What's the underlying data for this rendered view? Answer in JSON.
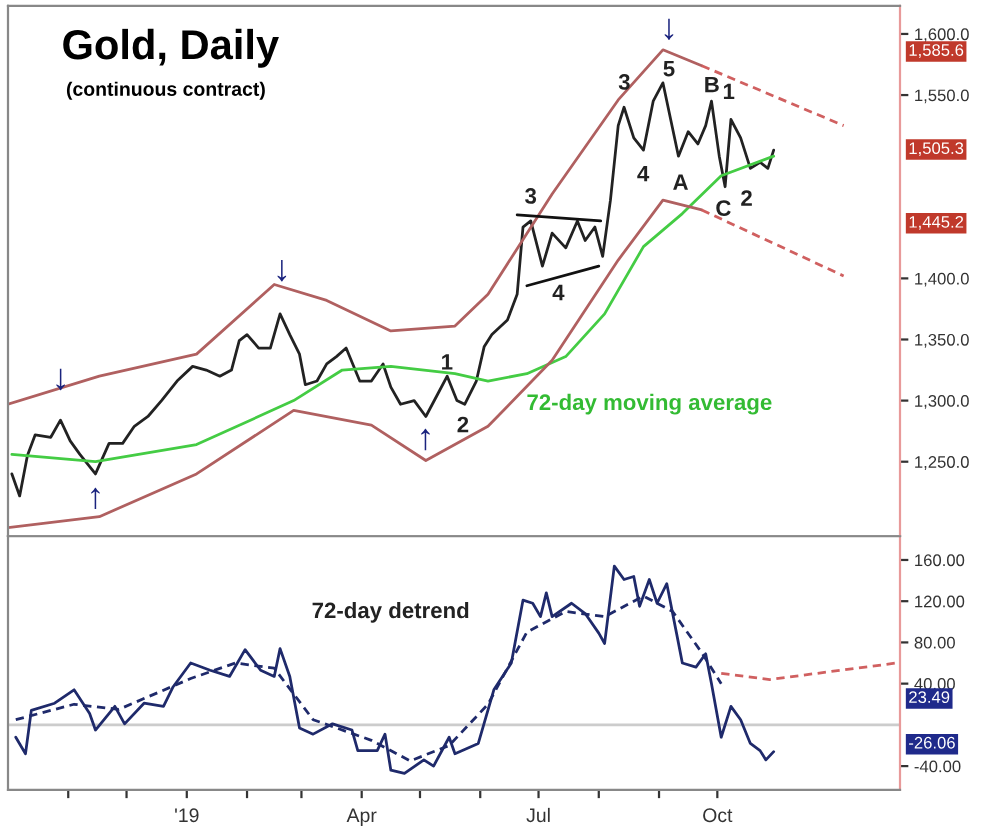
{
  "chart_data": [
    {
      "type": "line",
      "title": "Gold, Daily",
      "subtitle": "(continuous contract)",
      "tick_labels": "y",
      "grid": false,
      "legend": false,
      "xlim": [
        "2018-10-01",
        "2020-01-03"
      ],
      "ylim": [
        1189,
        1623
      ],
      "yticks": [
        {
          "value": 1250,
          "label": "1,250.0"
        },
        {
          "value": 1300,
          "label": "1,300.0"
        },
        {
          "value": 1350,
          "label": "1,350.0"
        },
        {
          "value": 1400,
          "label": "1,400.0"
        },
        {
          "value": 1550,
          "label": "1,550.0"
        },
        {
          "value": 1600,
          "label": "1,600.0"
        }
      ],
      "series": [
        {
          "color": "#222222",
          "x": [
            "2018-10-03",
            "2018-10-07",
            "2018-10-11",
            "2018-10-15",
            "2018-10-23",
            "2018-10-28",
            "2018-11-02",
            "2018-11-07",
            "2018-11-15",
            "2018-11-22",
            "2018-11-29",
            "2018-12-05",
            "2018-12-12",
            "2018-12-19",
            "2018-12-27",
            "2019-01-04",
            "2019-01-11",
            "2019-01-18",
            "2019-01-24",
            "2019-01-28",
            "2019-02-01",
            "2019-02-07",
            "2019-02-13",
            "2019-02-18",
            "2019-02-23",
            "2019-02-28",
            "2019-03-03",
            "2019-03-09",
            "2019-03-14",
            "2019-03-19",
            "2019-03-24",
            "2019-03-31",
            "2019-04-06",
            "2019-04-12",
            "2019-04-16",
            "2019-04-21",
            "2019-04-28",
            "2019-05-04",
            "2019-05-10",
            "2019-05-15",
            "2019-05-20",
            "2019-05-24",
            "2019-05-30",
            "2019-06-03",
            "2019-06-07",
            "2019-06-15",
            "2019-06-20",
            "2019-06-23",
            "2019-06-27",
            "2019-07-03",
            "2019-07-08",
            "2019-07-15",
            "2019-07-21",
            "2019-07-25",
            "2019-07-30",
            "2019-08-03",
            "2019-08-07",
            "2019-08-11",
            "2019-08-14",
            "2019-08-19",
            "2019-08-24",
            "2019-08-29",
            "2019-09-03",
            "2019-09-07",
            "2019-09-11",
            "2019-09-16",
            "2019-09-21",
            "2019-09-25",
            "2019-09-28",
            "2019-10-02",
            "2019-10-05",
            "2019-10-08",
            "2019-10-13",
            "2019-10-18",
            "2019-10-23",
            "2019-10-27",
            "2019-10-30"
          ],
          "values": [
            1240,
            1222,
            1255,
            1272,
            1270,
            1284,
            1267,
            1256,
            1240,
            1265,
            1265,
            1279,
            1287,
            1300,
            1316,
            1328,
            1325,
            1320,
            1325,
            1349,
            1354,
            1343,
            1343,
            1371,
            1354,
            1338,
            1313,
            1316,
            1330,
            1336,
            1343,
            1316,
            1316,
            1330,
            1311,
            1297,
            1300,
            1287,
            1305,
            1320,
            1300,
            1297,
            1316,
            1344,
            1354,
            1366,
            1387,
            1442,
            1447,
            1410,
            1437,
            1425,
            1447,
            1431,
            1442,
            1418,
            1464,
            1525,
            1540,
            1515,
            1505,
            1545,
            1560,
            1530,
            1500,
            1520,
            1510,
            1525,
            1545,
            1500,
            1475,
            1530,
            1515,
            1490,
            1495,
            1490,
            1505
          ]
        },
        {
          "color": "#44cc44",
          "x": [
            "2018-10-03",
            "2018-11-15",
            "2019-01-06",
            "2019-02-25",
            "2019-03-22",
            "2019-04-16",
            "2019-05-19",
            "2019-06-05",
            "2019-06-25",
            "2019-07-15",
            "2019-08-04",
            "2019-08-24",
            "2019-09-13",
            "2019-10-03",
            "2019-10-30"
          ],
          "values": [
            1256,
            1250,
            1264,
            1300,
            1325,
            1328,
            1322,
            1316,
            1322,
            1336,
            1371,
            1426,
            1453,
            1484,
            1500
          ]
        },
        {
          "color": "#b06060",
          "x": [
            "2018-10-01",
            "2018-11-17",
            "2019-01-06",
            "2019-02-15",
            "2019-03-14",
            "2019-04-16",
            "2019-05-19",
            "2019-06-05",
            "2019-07-08",
            "2019-08-11",
            "2019-09-03",
            "2019-09-23"
          ],
          "values": [
            1297,
            1320,
            1338,
            1395,
            1382,
            1357,
            1361,
            1387,
            1469,
            1546,
            1587,
            1574
          ]
        },
        {
          "color": "#b06060",
          "x": [
            "2018-10-01",
            "2018-11-17",
            "2019-01-06",
            "2019-02-25",
            "2019-04-06",
            "2019-05-04",
            "2019-06-05",
            "2019-07-08",
            "2019-08-11",
            "2019-09-03",
            "2019-09-23"
          ],
          "values": [
            1196,
            1205,
            1240,
            1292,
            1280,
            1251,
            1279,
            1333,
            1415,
            1464,
            1456
          ]
        },
        {
          "color": "#d06060",
          "line_style": "dashed",
          "x": [
            "2019-09-23",
            "2019-12-05"
          ],
          "values": [
            1574,
            1525
          ]
        },
        {
          "color": "#d06060",
          "line_style": "dashed",
          "x": [
            "2019-09-23",
            "2019-12-05"
          ],
          "values": [
            1456,
            1402
          ]
        },
        {
          "color": "#111111",
          "x": [
            "2019-06-20",
            "2019-08-02"
          ],
          "values": [
            1452,
            1447
          ]
        },
        {
          "color": "#111111",
          "x": [
            "2019-06-25",
            "2019-08-01"
          ],
          "values": [
            1394,
            1410
          ]
        }
      ],
      "annotations": [
        "72-day moving average",
        "1",
        "2",
        "3",
        "4",
        "3",
        "4",
        "5",
        "A",
        "B",
        "1",
        "C",
        "2",
        "↓",
        "↑",
        "↓",
        "↑",
        "↓",
        "1,585.6",
        "1,505.3",
        "1,445.2"
      ]
    },
    {
      "type": "line",
      "grid": false,
      "legend": false,
      "xlim": [
        "2018-10-01",
        "2020-01-03"
      ],
      "ylim": [
        -63,
        183
      ],
      "xticks": [
        {
          "value": "2018-11-01",
          "label": null
        },
        {
          "value": "2018-12-01",
          "label": null
        },
        {
          "value": "2019-01-01",
          "label": "'19"
        },
        {
          "value": "2019-02-01",
          "label": null
        },
        {
          "value": "2019-03-01",
          "label": null
        },
        {
          "value": "2019-04-01",
          "label": "Apr"
        },
        {
          "value": "2019-05-01",
          "label": null
        },
        {
          "value": "2019-06-01",
          "label": null
        },
        {
          "value": "2019-07-01",
          "label": "Jul"
        },
        {
          "value": "2019-08-01",
          "label": null
        },
        {
          "value": "2019-09-01",
          "label": null
        },
        {
          "value": "2019-10-01",
          "label": "Oct"
        }
      ],
      "yticks": [
        {
          "value": -40,
          "label": "-40.00"
        },
        {
          "value": 40,
          "label": "40.00"
        },
        {
          "value": 80,
          "label": "80.00"
        },
        {
          "value": 120,
          "label": "120.00"
        },
        {
          "value": 160,
          "label": "160.00"
        }
      ],
      "ref_lines": [
        {
          "axis": "y",
          "value": 0,
          "color": "#cccccc"
        }
      ],
      "series": [
        {
          "color": "#1f2a6b",
          "x": [
            "2018-10-05",
            "2018-10-10",
            "2018-10-13",
            "2018-10-25",
            "2018-11-04",
            "2018-11-12",
            "2018-11-15",
            "2018-11-25",
            "2018-11-30",
            "2018-12-10",
            "2018-12-20",
            "2018-12-25",
            "2019-01-03",
            "2019-01-13",
            "2019-01-23",
            "2019-01-31",
            "2019-02-08",
            "2019-02-15",
            "2019-02-18",
            "2019-02-23",
            "2019-02-28",
            "2019-03-07",
            "2019-03-17",
            "2019-03-27",
            "2019-03-30",
            "2019-04-09",
            "2019-04-13",
            "2019-04-16",
            "2019-04-23",
            "2019-05-03",
            "2019-05-08",
            "2019-05-16",
            "2019-05-19",
            "2019-05-31",
            "2019-06-08",
            "2019-06-17",
            "2019-06-23",
            "2019-06-28",
            "2019-07-02",
            "2019-07-05",
            "2019-07-08",
            "2019-07-18",
            "2019-07-25",
            "2019-08-01",
            "2019-08-04",
            "2019-08-09",
            "2019-08-14",
            "2019-08-19",
            "2019-08-22",
            "2019-08-27",
            "2019-08-31",
            "2019-09-05",
            "2019-09-10",
            "2019-09-13",
            "2019-09-20",
            "2019-09-25",
            "2019-09-28",
            "2019-10-03",
            "2019-10-08",
            "2019-10-13",
            "2019-10-18",
            "2019-10-23",
            "2019-10-26",
            "2019-10-30"
          ],
          "values": [
            -12,
            -28,
            14,
            21,
            34,
            11,
            -5,
            18,
            1,
            21,
            18,
            37,
            60,
            53,
            47,
            73,
            53,
            47,
            74,
            47,
            -3,
            -9,
            1,
            -5,
            -25,
            -25,
            -9,
            -44,
            -47,
            -34,
            -40,
            -12,
            -28,
            -18,
            34,
            60,
            121,
            118,
            105,
            128,
            105,
            118,
            108,
            89,
            79,
            154,
            141,
            144,
            115,
            141,
            118,
            137,
            89,
            60,
            56,
            69,
            40,
            -12,
            18,
            5,
            -18,
            -25,
            -34,
            -26
          ]
        },
        {
          "color": "#1f2a6b",
          "line_style": "dashed",
          "x": [
            "2018-10-05",
            "2018-11-04",
            "2018-11-27",
            "2019-01-03",
            "2019-01-26",
            "2019-02-15",
            "2019-03-07",
            "2019-04-06",
            "2019-04-26",
            "2019-05-16",
            "2019-06-05",
            "2019-06-25",
            "2019-07-15",
            "2019-08-04",
            "2019-08-24",
            "2019-09-08",
            "2019-09-23",
            "2019-10-03"
          ],
          "values": [
            5,
            20,
            15,
            45,
            60,
            55,
            5,
            -15,
            -35,
            -20,
            20,
            90,
            110,
            105,
            125,
            110,
            70,
            40
          ]
        },
        {
          "color": "#d06060",
          "line_style": "dashed",
          "x": [
            "2019-10-03",
            "2019-10-28",
            "2020-01-01"
          ],
          "values": [
            50,
            44,
            60
          ]
        }
      ],
      "annotations": [
        "72-day detrend",
        "23.49",
        "-26.06"
      ]
    }
  ]
}
